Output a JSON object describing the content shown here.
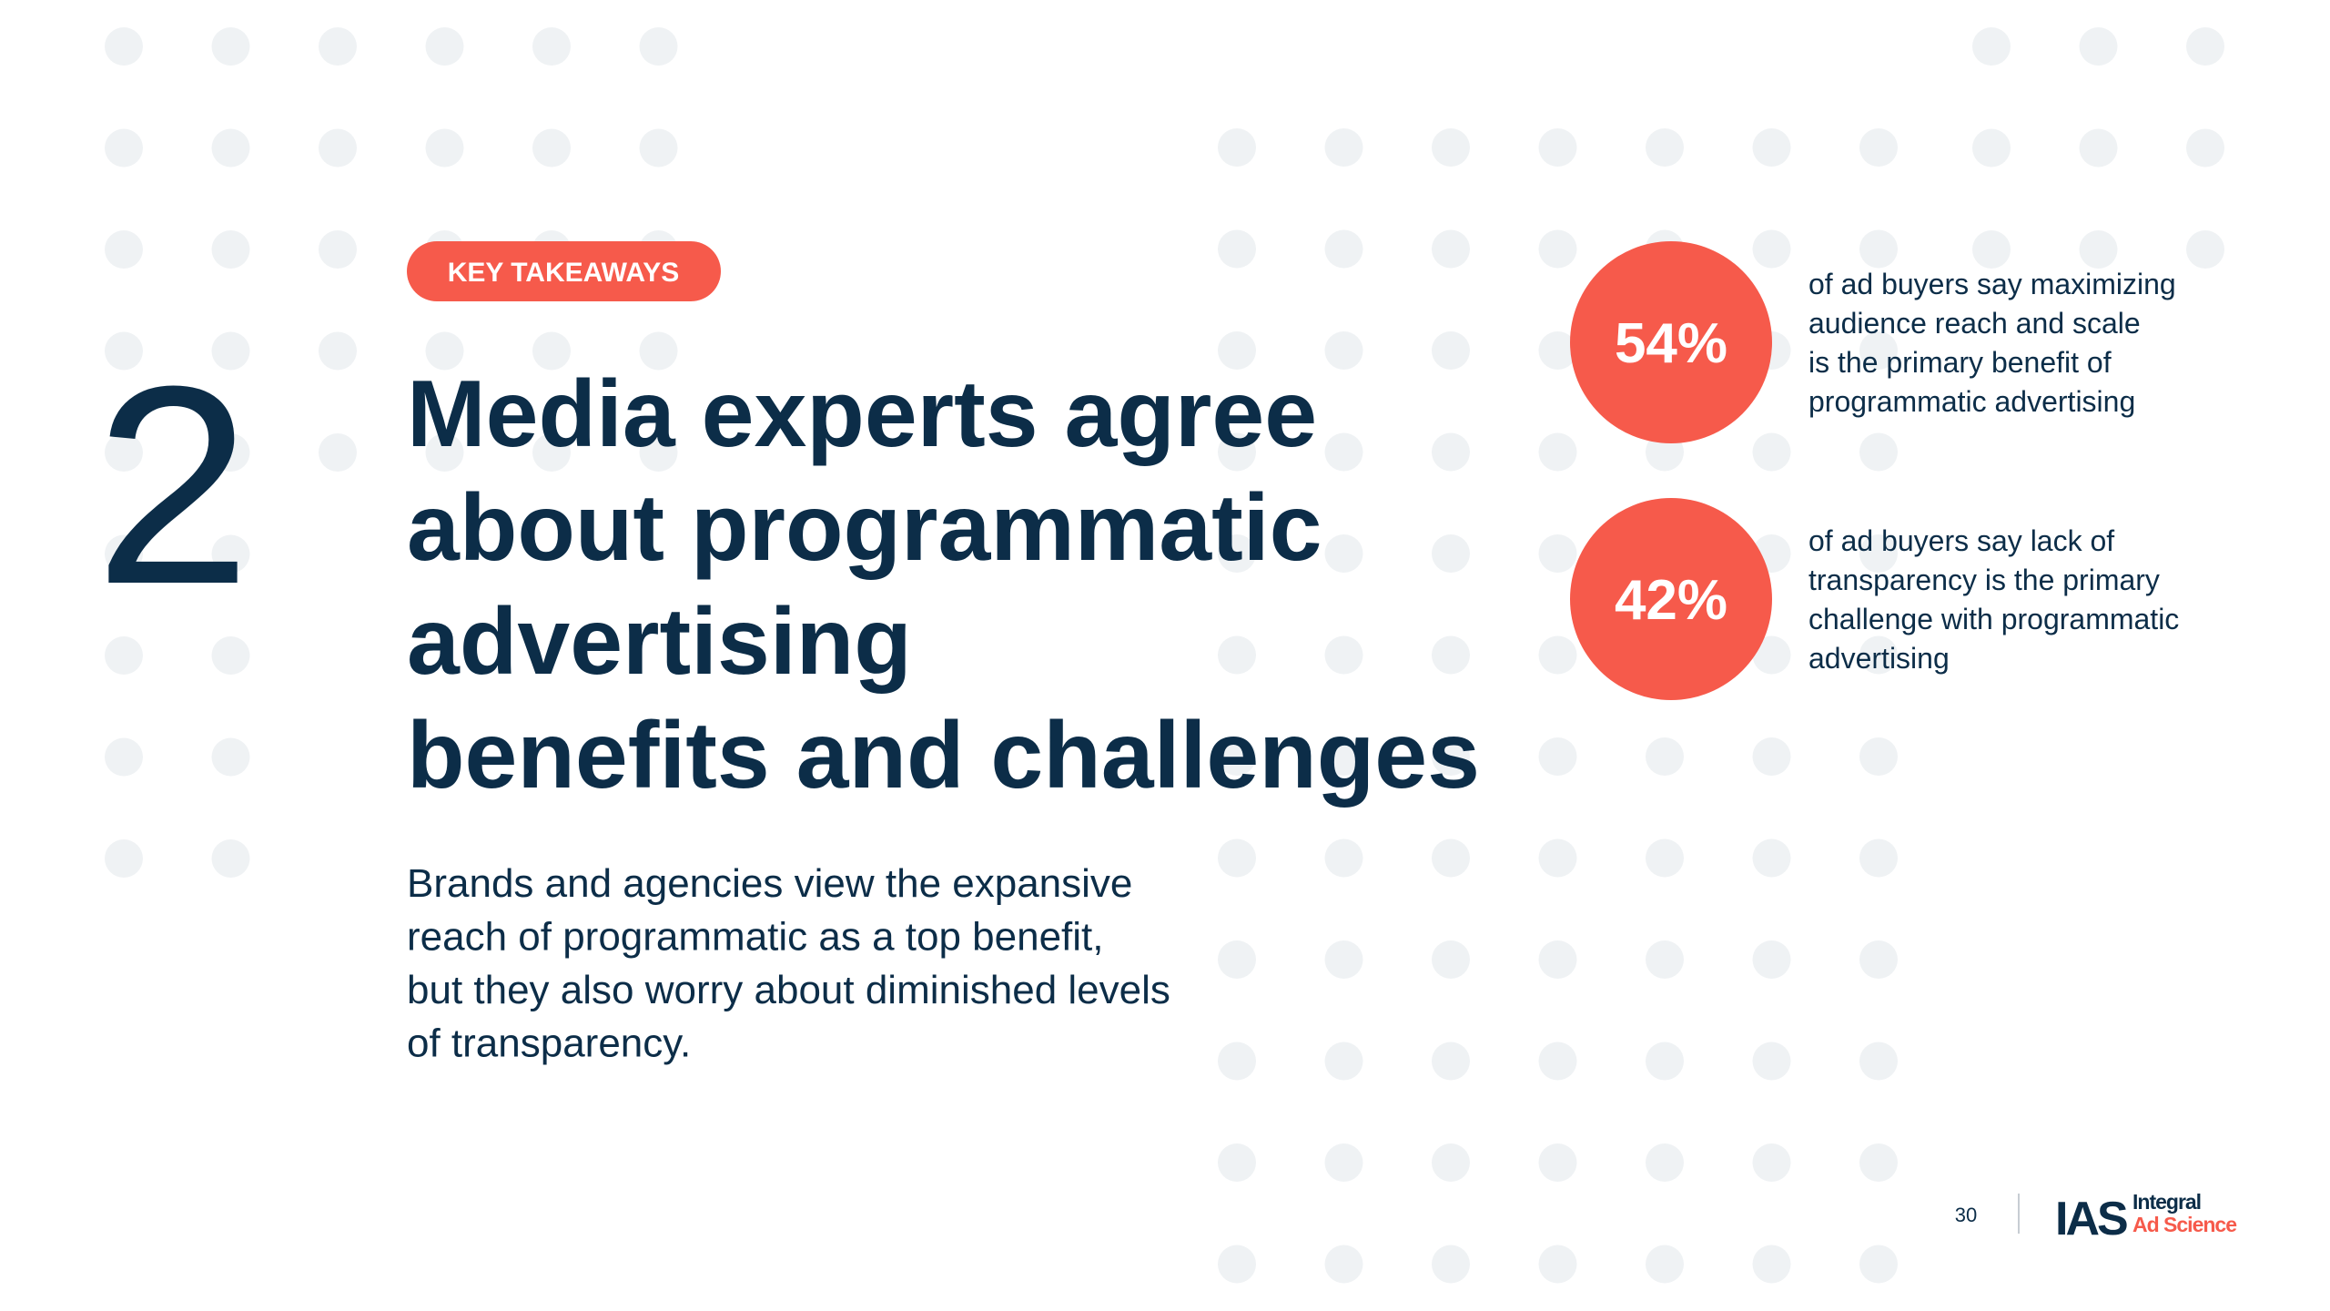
{
  "section_number": "2",
  "badge": "KEY TAKEAWAYS",
  "headline": [
    "Media experts agree",
    "about programmatic",
    "advertising",
    "benefits and challenges"
  ],
  "body": [
    "Brands and agencies view the expansive",
    "reach of programmatic as a top benefit,",
    "but they also worry about diminished levels",
    "of transparency."
  ],
  "stats": [
    {
      "value": "54%",
      "description": [
        "of ad buyers say maximizing",
        "audience reach and scale",
        "is the primary benefit of",
        "programmatic advertising"
      ]
    },
    {
      "value": "42%",
      "description": [
        "of ad buyers say lack of",
        "transparency is the primary",
        "challenge with programmatic",
        "advertising"
      ]
    }
  ],
  "footer": {
    "page_number": "30",
    "logo": {
      "mark": "IAS",
      "name": [
        "Integral",
        "Ad Science"
      ]
    }
  }
}
